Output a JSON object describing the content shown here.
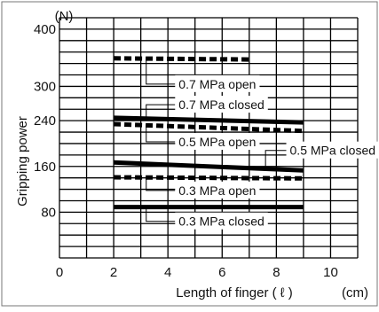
{
  "chart_data": {
    "type": "line",
    "title": "",
    "unit_label": "(N)",
    "ylabel": "Gripping power",
    "xlabel": "Length of finger ( ℓ )",
    "xunit": "(cm)",
    "xlim": [
      0,
      11
    ],
    "ylim": [
      0,
      420
    ],
    "xticks": [
      0,
      2,
      4,
      6,
      8,
      10
    ],
    "yticks": [
      80,
      160,
      240,
      300,
      400
    ],
    "grid": true,
    "series": [
      {
        "name": "0.7 MPa open",
        "style": "dashed",
        "x": [
          2,
          7
        ],
        "y": [
          349,
          347
        ]
      },
      {
        "name": "0.7 MPa closed",
        "style": "solid",
        "x": [
          2,
          9
        ],
        "y": [
          245,
          237
        ]
      },
      {
        "name": "0.5 MPa open",
        "style": "dashed",
        "x": [
          2,
          9
        ],
        "y": [
          234,
          222
        ]
      },
      {
        "name": "0.5 MPa closed",
        "style": "solid",
        "x": [
          2,
          9
        ],
        "y": [
          167,
          153
        ]
      },
      {
        "name": "0.3 MPa open",
        "style": "dashed",
        "x": [
          2,
          9
        ],
        "y": [
          141,
          139
        ]
      },
      {
        "name": "0.3 MPa closed",
        "style": "solid",
        "x": [
          2,
          9
        ],
        "y": [
          89,
          89
        ]
      }
    ]
  }
}
